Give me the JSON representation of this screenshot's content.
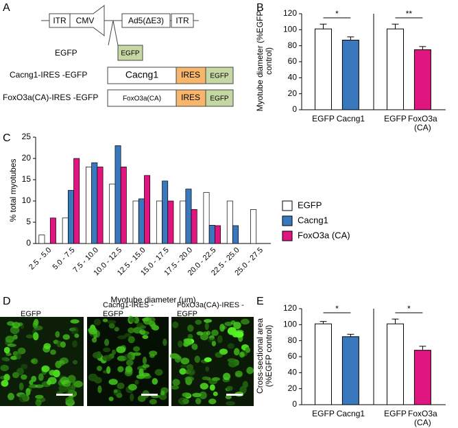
{
  "panel_labels": [
    "A",
    "B",
    "C",
    "D",
    "E"
  ],
  "diagram": {
    "vector": [
      "ITR",
      "CMV",
      "Ad5(ΔE3)",
      "ITR"
    ],
    "constructs": [
      {
        "name": "EGFP",
        "parts": [
          "EGFP"
        ]
      },
      {
        "name": "Cacng1-IRES -EGFP",
        "parts": [
          "Cacng1",
          "IRES",
          "EGFP"
        ]
      },
      {
        "name": "FoxO3a(CA)-IRES -EGFP",
        "parts": [
          "FoxO3a(CA)",
          "IRES",
          "EGFP"
        ]
      }
    ]
  },
  "images": {
    "captions": [
      "EGFP",
      "Cacng1-IRES -EGFP",
      "FoxO3a(CA)-IRES -EGFP"
    ]
  },
  "chart_data": [
    {
      "type": "bar",
      "y_label": "Myotube diameter (%EGFP control)",
      "categories": [
        "EGFP",
        "Cacng1",
        "EGFP",
        "FoxO3a (CA)"
      ],
      "values": [
        101,
        87,
        101,
        75
      ],
      "errors": [
        6,
        4,
        6,
        4
      ],
      "colors": [
        "#ffffff",
        "#3a78bd",
        "#ffffff",
        "#e0157f"
      ],
      "annotations": [
        {
          "text": "*"
        },
        {
          "text": "**"
        }
      ],
      "ylim": [
        0,
        120
      ],
      "yticks": [
        0,
        20,
        40,
        60,
        80,
        100,
        120
      ]
    },
    {
      "type": "grouped_bar",
      "x_label": "Myotube diameter (μm)",
      "y_label": "% total myotubes",
      "categories": [
        "2.5 - 5.0",
        "5.0 - 7.5",
        "7.5 - 10.0",
        "10.0 - 12.5",
        "12.5 - 15.0",
        "15.0 - 17.5",
        "17.5 - 20.0",
        "20.0 - 22.5",
        "22.5 - 25.0",
        "25.0 - 27.5"
      ],
      "series": [
        {
          "name": "EGFP",
          "color": "#ffffff",
          "values": [
            2,
            6,
            18,
            14,
            10,
            10,
            10,
            12,
            10,
            8
          ]
        },
        {
          "name": "Cacng1",
          "color": "#3a78bd",
          "values": [
            null,
            12.5,
            19,
            23,
            10.5,
            14.7,
            12.8,
            4.3,
            4.2,
            null
          ]
        },
        {
          "name": "FoxO3a (CA)",
          "color": "#e0157f",
          "values": [
            6,
            20,
            18,
            18,
            16,
            10,
            8,
            4.2,
            null,
            null
          ]
        }
      ],
      "ylim": [
        0,
        25
      ],
      "yticks": [
        0,
        5,
        10,
        15,
        20,
        25
      ]
    },
    {
      "type": "bar",
      "y_label": "Cross-sectional area (%EGFP control)",
      "categories": [
        "EGFP",
        "Cacng1",
        "EGFP",
        "FoxO3a (CA)"
      ],
      "values": [
        101,
        85,
        101,
        68
      ],
      "errors": [
        3,
        3,
        6,
        5
      ],
      "colors": [
        "#ffffff",
        "#3a78bd",
        "#ffffff",
        "#e0157f"
      ],
      "annotations": [
        {
          "text": "*"
        },
        {
          "text": "*"
        }
      ],
      "ylim": [
        0,
        120
      ],
      "yticks": [
        0,
        20,
        40,
        60,
        80,
        100,
        120
      ]
    }
  ]
}
